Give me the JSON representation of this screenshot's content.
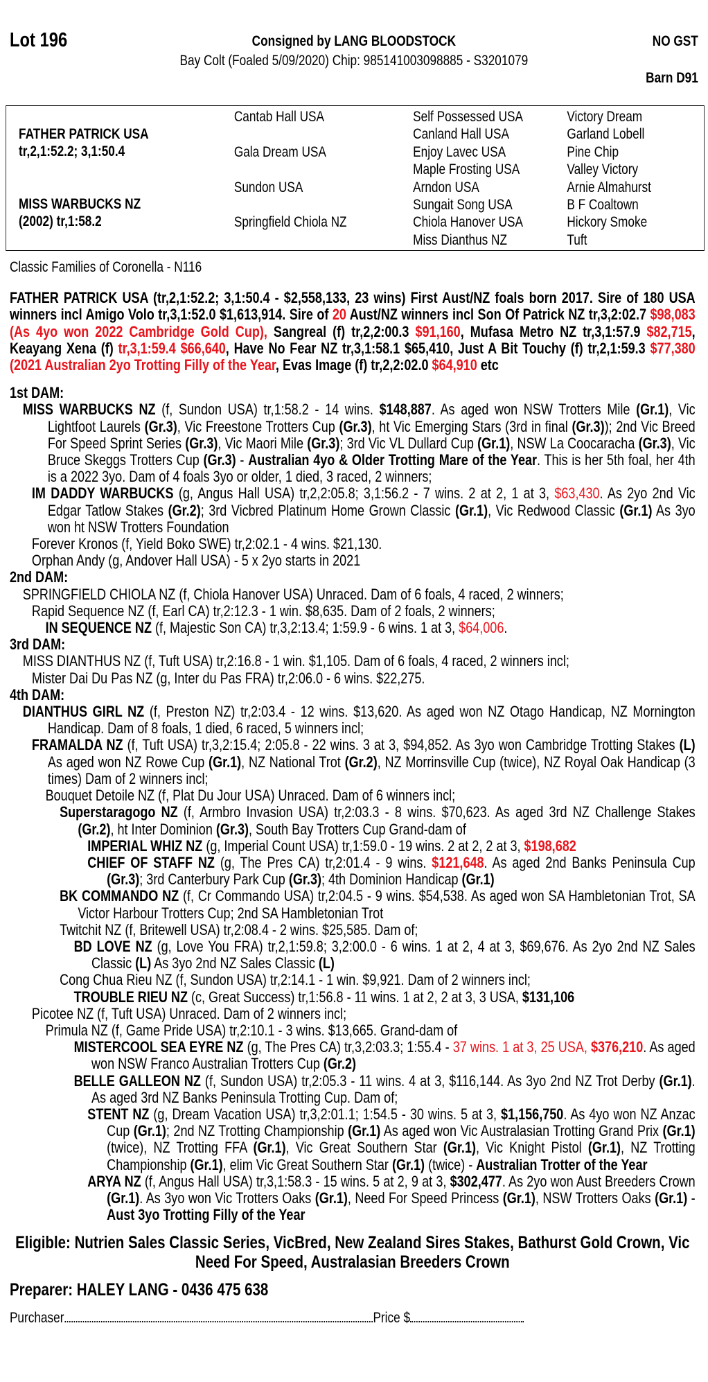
{
  "header": {
    "lot": "Lot 196",
    "consigned": "Consigned by LANG BLOODSTOCK",
    "gst": "NO GST",
    "description": "Bay Colt (Foaled 5/09/2020) Chip: 985141003098885 - S3201079",
    "barn": "Barn D91"
  },
  "pedigree": {
    "sire": "FATHER PATRICK USA",
    "sire_record": "tr,2,1:52.2; 3,1:50.4",
    "dam": "MISS WARBUCKS NZ",
    "dam_record": "(2002) tr,1:58.2",
    "gen2": [
      "Cantab Hall USA",
      "Gala Dream USA",
      "Sundon USA",
      "Springfield Chiola NZ"
    ],
    "gen3": [
      "Self Possessed USA",
      "Canland Hall USA",
      "Enjoy Lavec USA",
      "Maple Frosting USA",
      "Arndon USA",
      "Sungait Song USA",
      "Chiola Hanover USA",
      "Miss Dianthus NZ"
    ],
    "gen4": [
      "Victory Dream",
      "Garland Lobell",
      "Pine Chip",
      "Valley Victory",
      "Arnie Almahurst",
      "B F Coaltown",
      "Hickory Smoke",
      "Tuft"
    ]
  },
  "family": "Classic Families of Coronella - N116",
  "sire_notes": [
    {
      "t": "FATHER PATRICK USA (tr,2,1:52.2; 3,1:50.4 - $2,558,133, 23 wins) First Aust/NZ foals born 2017. Sire of 180 USA winners incl Amigo Volo tr,3,1:52.0 $1,613,914. Sire of ",
      "s": ""
    },
    {
      "t": "20",
      "s": "r"
    },
    {
      "t": " Aust/NZ winners incl Son Of Patrick NZ tr,3,2:02.7 ",
      "s": ""
    },
    {
      "t": "$98,083 (As 4yo won 2022 Cambridge Gold Cup),",
      "s": "r"
    },
    {
      "t": " Sangreal (f) tr,2,2:00.3 ",
      "s": ""
    },
    {
      "t": "$91,160",
      "s": "r"
    },
    {
      "t": ", Mufasa Metro NZ tr,3,1:57.9 ",
      "s": ""
    },
    {
      "t": "$82,715",
      "s": "r"
    },
    {
      "t": ", Keayang Xena (f) ",
      "s": ""
    },
    {
      "t": "tr,3,1:59.4 $66,640",
      "s": "r"
    },
    {
      "t": ", Have No Fear NZ tr,3,1:58.1 $65,410, Just A Bit Touchy (f) tr,2,1:59.3 ",
      "s": ""
    },
    {
      "t": "$77,380 (2021 Australian 2yo Trotting Filly of the Year",
      "s": "r"
    },
    {
      "t": ", Evas Image (f) tr,2,2:02.0 ",
      "s": ""
    },
    {
      "t": "$64,910",
      "s": "r"
    },
    {
      "t": " etc",
      "s": ""
    }
  ],
  "notes": [
    {
      "type": "heading",
      "segs": [
        {
          "t": "1st DAM:",
          "s": "b"
        }
      ]
    },
    {
      "level": 0,
      "segs": [
        {
          "t": "MISS WARBUCKS NZ",
          "s": "b"
        },
        {
          "t": " (f, Sundon USA) tr,1:58.2 - 14 wins. ",
          "s": ""
        },
        {
          "t": "$148,887",
          "s": "b"
        },
        {
          "t": ". As aged won NSW Trotters Mile ",
          "s": ""
        },
        {
          "t": "(Gr.1)",
          "s": "b"
        },
        {
          "t": ", Vic Lightfoot Laurels ",
          "s": ""
        },
        {
          "t": "(Gr.3)",
          "s": "b"
        },
        {
          "t": ", Vic Freestone Trotters Cup ",
          "s": ""
        },
        {
          "t": "(Gr.3)",
          "s": "b"
        },
        {
          "t": ", ht Vic Emerging Stars (3rd in final ",
          "s": ""
        },
        {
          "t": "(Gr.3)",
          "s": "b"
        },
        {
          "t": "); 2nd Vic Breed For Speed Sprint Series ",
          "s": ""
        },
        {
          "t": "(Gr.3)",
          "s": "b"
        },
        {
          "t": ", Vic Maori Mile ",
          "s": ""
        },
        {
          "t": "(Gr.3)",
          "s": "b"
        },
        {
          "t": "; 3rd Vic VL Dullard Cup ",
          "s": ""
        },
        {
          "t": "(Gr.1)",
          "s": "b"
        },
        {
          "t": ", NSW La Coocaracha ",
          "s": ""
        },
        {
          "t": "(Gr.3)",
          "s": "b"
        },
        {
          "t": ", Vic Bruce Skeggs Trotters Cup ",
          "s": ""
        },
        {
          "t": "(Gr.3)",
          "s": "b"
        },
        {
          "t": " - ",
          "s": ""
        },
        {
          "t": "Australian 4yo & Older Trotting Mare of the Year",
          "s": "b"
        },
        {
          "t": ". This is her 5th foal, her 4th is a 2022 3yo. Dam of 4 foals 3yo or older, 1 died, 3 raced, 2 winners;",
          "s": ""
        }
      ]
    },
    {
      "level": 1,
      "segs": [
        {
          "t": "IM DADDY WARBUCKS",
          "s": "b"
        },
        {
          "t": " (g, Angus Hall USA) tr,2,2:05.8; 3,1:56.2 - 7 wins. 2 at 2, 1 at 3, ",
          "s": ""
        },
        {
          "t": "$63,430",
          "s": "r"
        },
        {
          "t": ". As 2yo 2nd Vic Edgar Tatlow Stakes ",
          "s": ""
        },
        {
          "t": "(Gr.2)",
          "s": "b"
        },
        {
          "t": "; 3rd Vicbred Platinum Home Grown Classic ",
          "s": ""
        },
        {
          "t": "(Gr.1)",
          "s": "b"
        },
        {
          "t": ", Vic Redwood Classic ",
          "s": ""
        },
        {
          "t": "(Gr.1)",
          "s": "b"
        },
        {
          "t": " As 3yo won ht NSW Trotters Foundation",
          "s": ""
        }
      ]
    },
    {
      "level": 1,
      "segs": [
        {
          "t": "Forever Kronos (f, Yield Boko SWE) tr,2:02.1 - 4 wins. $21,130.",
          "s": ""
        }
      ]
    },
    {
      "level": 1,
      "segs": [
        {
          "t": "Orphan Andy (g, Andover Hall USA) - 5 x 2yo starts in 2021",
          "s": ""
        }
      ]
    },
    {
      "type": "heading",
      "segs": [
        {
          "t": "2nd DAM:",
          "s": "b"
        }
      ]
    },
    {
      "level": 0,
      "segs": [
        {
          "t": "SPRINGFIELD CHIOLA NZ (f, Chiola Hanover USA) Unraced. Dam of 6 foals, 4 raced, 2 winners;",
          "s": ""
        }
      ]
    },
    {
      "level": 1,
      "segs": [
        {
          "t": "Rapid Sequence NZ (f, Earl CA) tr,2:12.3 - 1 win. $8,635. Dam of 2 foals, 2 winners;",
          "s": ""
        }
      ]
    },
    {
      "level": 2,
      "segs": [
        {
          "t": "IN SEQUENCE NZ",
          "s": "b"
        },
        {
          "t": " (f, Majestic Son CA) tr,3,2:13.4; 1:59.9 - 6 wins. 1 at 3, ",
          "s": ""
        },
        {
          "t": "$64,006",
          "s": "r"
        },
        {
          "t": ".",
          "s": ""
        }
      ]
    },
    {
      "type": "heading",
      "segs": [
        {
          "t": "3rd DAM:",
          "s": "b"
        }
      ]
    },
    {
      "level": 0,
      "segs": [
        {
          "t": "MISS DIANTHUS NZ (f, Tuft USA) tr,2:16.8 - 1 win. $1,105. Dam of 6 foals, 4 raced, 2 winners incl;",
          "s": ""
        }
      ]
    },
    {
      "level": 1,
      "segs": [
        {
          "t": "Mister Dai Du Pas NZ (g, Inter du Pas FRA) tr,2:06.0 - 6 wins. $22,275.",
          "s": ""
        }
      ]
    },
    {
      "type": "heading",
      "segs": [
        {
          "t": "4th DAM:",
          "s": "b"
        }
      ]
    },
    {
      "level": 0,
      "segs": [
        {
          "t": "DIANTHUS GIRL NZ",
          "s": "b"
        },
        {
          "t": " (f, Preston NZ) tr,2:03.4 - 12 wins. $13,620. As aged won NZ Otago Handicap, NZ Mornington Handicap. Dam of 8 foals, 1 died, 6 raced, 5 winners incl;",
          "s": ""
        }
      ]
    },
    {
      "level": 1,
      "segs": [
        {
          "t": "FRAMALDA NZ",
          "s": "b"
        },
        {
          "t": " (f, Tuft USA) tr,3,2:15.4; 2:05.8 - 22 wins. 3 at 3, $94,852. As 3yo won Cambridge Trotting Stakes ",
          "s": ""
        },
        {
          "t": "(L)",
          "s": "b"
        },
        {
          "t": " As aged won NZ Rowe Cup ",
          "s": ""
        },
        {
          "t": "(Gr.1)",
          "s": "b"
        },
        {
          "t": ", NZ National Trot ",
          "s": ""
        },
        {
          "t": "(Gr.2)",
          "s": "b"
        },
        {
          "t": ", NZ Morrinsville Cup (twice), NZ Royal Oak Handicap (3 times) Dam of 2 winners incl;",
          "s": ""
        }
      ]
    },
    {
      "level": 2,
      "segs": [
        {
          "t": "Bouquet Detoile NZ (f, Plat Du Jour USA) Unraced. Dam of 6 winners incl;",
          "s": ""
        }
      ]
    },
    {
      "level": 3,
      "segs": [
        {
          "t": "Superstaragogo NZ",
          "s": "b"
        },
        {
          "t": " (f, Armbro Invasion USA) tr,2:03.3 - 8 wins. $70,623. As aged 3rd NZ Challenge Stakes ",
          "s": ""
        },
        {
          "t": "(Gr.2)",
          "s": "b"
        },
        {
          "t": ", ht Inter Dominion ",
          "s": ""
        },
        {
          "t": "(Gr.3)",
          "s": "b"
        },
        {
          "t": ", South Bay Trotters Cup Grand-dam of",
          "s": ""
        }
      ]
    },
    {
      "level": 5,
      "segs": [
        {
          "t": "IMPERIAL WHIZ NZ",
          "s": "b"
        },
        {
          "t": " (g, Imperial Count USA) tr,1:59.0 - 19 wins. 2 at 2, 2 at 3, ",
          "s": ""
        },
        {
          "t": "$198,682",
          "s": "rb"
        }
      ]
    },
    {
      "level": 5,
      "segs": [
        {
          "t": "CHIEF OF STAFF NZ",
          "s": "b"
        },
        {
          "t": " (g, The Pres CA) tr,2:01.4 - 9 wins. ",
          "s": ""
        },
        {
          "t": "$121,648",
          "s": "rb"
        },
        {
          "t": ". As aged 2nd Banks Peninsula Cup ",
          "s": ""
        },
        {
          "t": "(Gr.3)",
          "s": "b"
        },
        {
          "t": "; 3rd Canterbury Park Cup ",
          "s": ""
        },
        {
          "t": "(Gr.3)",
          "s": "b"
        },
        {
          "t": "; 4th Dominion Handicap ",
          "s": ""
        },
        {
          "t": "(Gr.1)",
          "s": "b"
        }
      ]
    },
    {
      "level": 3,
      "segs": [
        {
          "t": "BK COMMANDO NZ",
          "s": "b"
        },
        {
          "t": " (f, Cr Commando USA) tr,2:04.5 - 9 wins. $54,538. As aged won SA Hambletonian Trot, SA Victor Harbour Trotters Cup; 2nd SA Hambletonian Trot",
          "s": ""
        }
      ]
    },
    {
      "level": 3,
      "segs": [
        {
          "t": "Twitchit NZ (f, Britewell USA) tr,2:08.4 - 2 wins. $25,585. Dam of;",
          "s": ""
        }
      ]
    },
    {
      "level": 4,
      "segs": [
        {
          "t": "BD LOVE NZ",
          "s": "b"
        },
        {
          "t": " (g, Love You FRA) tr,2,1:59.8; 3,2:00.0 - 6 wins. 1 at 2, 4 at 3, $69,676. As 2yo 2nd NZ Sales Classic ",
          "s": ""
        },
        {
          "t": "(L)",
          "s": "b"
        },
        {
          "t": " As 3yo 2nd NZ Sales Classic ",
          "s": ""
        },
        {
          "t": "(L)",
          "s": "b"
        }
      ]
    },
    {
      "level": 3,
      "segs": [
        {
          "t": "Cong Chua Rieu NZ (f, Sundon USA) tr,2:14.1 - 1 win. $9,921. Dam of 2 winners incl;",
          "s": ""
        }
      ]
    },
    {
      "level": 4,
      "segs": [
        {
          "t": "TROUBLE RIEU NZ",
          "s": "b"
        },
        {
          "t": " (c, Great Success) tr,1:56.8 - 11 wins. 1 at 2, 2 at 3, 3 USA, ",
          "s": ""
        },
        {
          "t": "$131,106",
          "s": "b"
        }
      ]
    },
    {
      "level": 1,
      "segs": [
        {
          "t": "Picotee NZ (f, Tuft USA) Unraced. Dam of 2 winners incl;",
          "s": ""
        }
      ]
    },
    {
      "level": 2,
      "segs": [
        {
          "t": "Primula NZ (f, Game Pride USA) tr,2:10.1 - 3 wins. $13,665. Grand-dam of",
          "s": ""
        }
      ]
    },
    {
      "level": 4,
      "segs": [
        {
          "t": "MISTERCOOL SEA EYRE NZ",
          "s": "b"
        },
        {
          "t": " (g, The Pres CA) tr,3,2:03.3; 1:55.4 - ",
          "s": ""
        },
        {
          "t": "37 wins. 1 at 3, 25 USA, ",
          "s": "r"
        },
        {
          "t": "$376,210",
          "s": "rb"
        },
        {
          "t": ". As aged won NSW Franco Australian Trotters Cup ",
          "s": ""
        },
        {
          "t": "(Gr.2)",
          "s": "b"
        }
      ]
    },
    {
      "level": 4,
      "segs": [
        {
          "t": "BELLE GALLEON NZ",
          "s": "b"
        },
        {
          "t": " (f, Sundon USA) tr,2:05.3 - 11 wins. 4 at 3, $116,144. As 3yo 2nd NZ Trot Derby ",
          "s": ""
        },
        {
          "t": "(Gr.1)",
          "s": "b"
        },
        {
          "t": ". As aged 3rd NZ Banks Peninsula Trotting Cup. Dam of;",
          "s": ""
        }
      ]
    },
    {
      "level": 5,
      "segs": [
        {
          "t": "STENT NZ",
          "s": "b"
        },
        {
          "t": " (g, Dream Vacation USA) tr,3,2:01.1; 1:54.5 - 30 wins. 5 at 3, ",
          "s": ""
        },
        {
          "t": "$1,156,750",
          "s": "b"
        },
        {
          "t": ". As 4yo won NZ Anzac Cup ",
          "s": ""
        },
        {
          "t": "(Gr.1)",
          "s": "b"
        },
        {
          "t": "; 2nd NZ Trotting Championship ",
          "s": ""
        },
        {
          "t": "(Gr.1)",
          "s": "b"
        },
        {
          "t": " As aged won Vic Australasian Trotting Grand Prix ",
          "s": ""
        },
        {
          "t": "(Gr.1)",
          "s": "b"
        },
        {
          "t": " (twice), NZ Trotting FFA ",
          "s": ""
        },
        {
          "t": "(Gr.1)",
          "s": "b"
        },
        {
          "t": ", Vic Great Southern Star ",
          "s": ""
        },
        {
          "t": "(Gr.1)",
          "s": "b"
        },
        {
          "t": ", Vic Knight Pistol ",
          "s": ""
        },
        {
          "t": "(Gr.1)",
          "s": "b"
        },
        {
          "t": ", NZ Trotting Championship ",
          "s": ""
        },
        {
          "t": "(Gr.1)",
          "s": "b"
        },
        {
          "t": ", elim Vic Great Southern Star ",
          "s": ""
        },
        {
          "t": "(Gr.1)",
          "s": "b"
        },
        {
          "t": " (twice) - ",
          "s": ""
        },
        {
          "t": "Australian Trotter of the Year",
          "s": "b"
        }
      ]
    },
    {
      "level": 5,
      "segs": [
        {
          "t": "ARYA NZ",
          "s": "b"
        },
        {
          "t": " (f, Angus Hall USA) tr,3,1:58.3 - 15 wins. 5 at 2, 9 at 3, ",
          "s": ""
        },
        {
          "t": "$302,477",
          "s": "b"
        },
        {
          "t": ". As 2yo won Aust Breeders Crown ",
          "s": ""
        },
        {
          "t": "(Gr.1)",
          "s": "b"
        },
        {
          "t": ". As 3yo won Vic Trotters Oaks ",
          "s": ""
        },
        {
          "t": "(Gr.1)",
          "s": "b"
        },
        {
          "t": ", Need For Speed Princess ",
          "s": ""
        },
        {
          "t": "(Gr.1)",
          "s": "b"
        },
        {
          "t": ", NSW Trotters Oaks ",
          "s": ""
        },
        {
          "t": "(Gr.1)",
          "s": "b"
        },
        {
          "t": " - ",
          "s": ""
        },
        {
          "t": "Aust 3yo Trotting Filly of the Year",
          "s": "b"
        }
      ]
    }
  ],
  "footer": {
    "eligible": "Eligible: Nutrien Sales Classic Series, VicBred, New Zealand Sires Stakes, Bathurst Gold Crown, Vic Need For Speed, Australasian Breeders Crown",
    "preparer": "Preparer: HALEY LANG - 0436 475 638",
    "purchaser_label": "Purchaser",
    "price_label": "Price $"
  },
  "colors": {
    "highlight": "#e8131b",
    "text": "#000000"
  }
}
